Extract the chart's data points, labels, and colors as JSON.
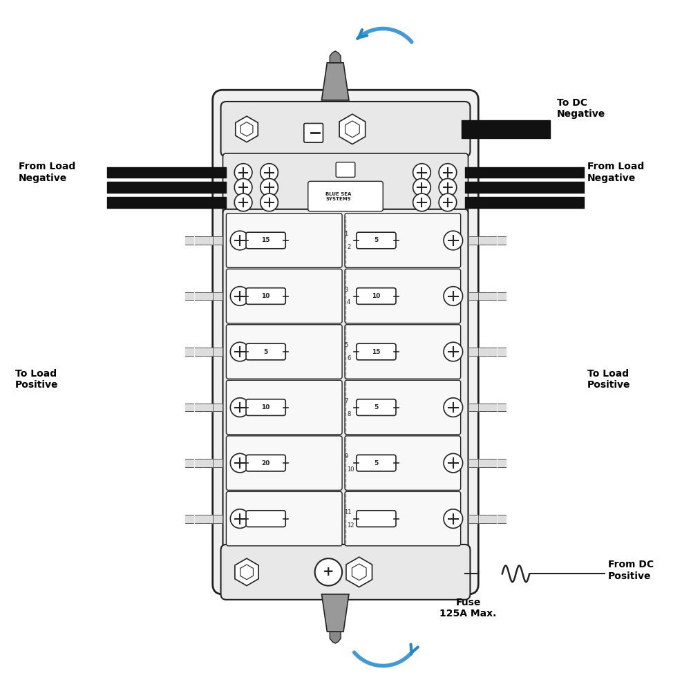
{
  "bg_color": "#ffffff",
  "outline_color": "#222222",
  "body_color": "#f5f5f5",
  "wire_color": "#111111",
  "blue_arrow_color": "#2288cc",
  "label_color": "#111111",
  "bold_label_color": "#000000",
  "title_font": 11,
  "label_font": 12,
  "fuse_rows": [
    {
      "left_val": "15",
      "right_val": "5",
      "left_num": "1",
      "right_num": "2"
    },
    {
      "left_val": "10",
      "right_val": "10",
      "left_num": "3",
      "right_num": "4"
    },
    {
      "left_val": "5",
      "right_val": "15",
      "left_num": "5",
      "right_num": "6"
    },
    {
      "left_val": "10",
      "right_val": "5",
      "left_num": "7",
      "right_num": "8"
    },
    {
      "left_val": "20",
      "right_val": "5",
      "left_num": "9",
      "right_num": "10"
    },
    {
      "left_val": "",
      "right_val": "",
      "left_num": "11",
      "right_num": "12"
    }
  ],
  "labels": {
    "from_load_neg_left": "From Load\nNegative",
    "from_load_neg_right": "From Load\nNegative",
    "to_dc_neg": "To DC\nNegative",
    "to_load_pos_left": "To Load\nPositive",
    "to_load_pos_right": "To Load\nPositive",
    "from_dc_pos": "From DC\nPositive",
    "fuse_label": "Fuse\n125A Max."
  }
}
